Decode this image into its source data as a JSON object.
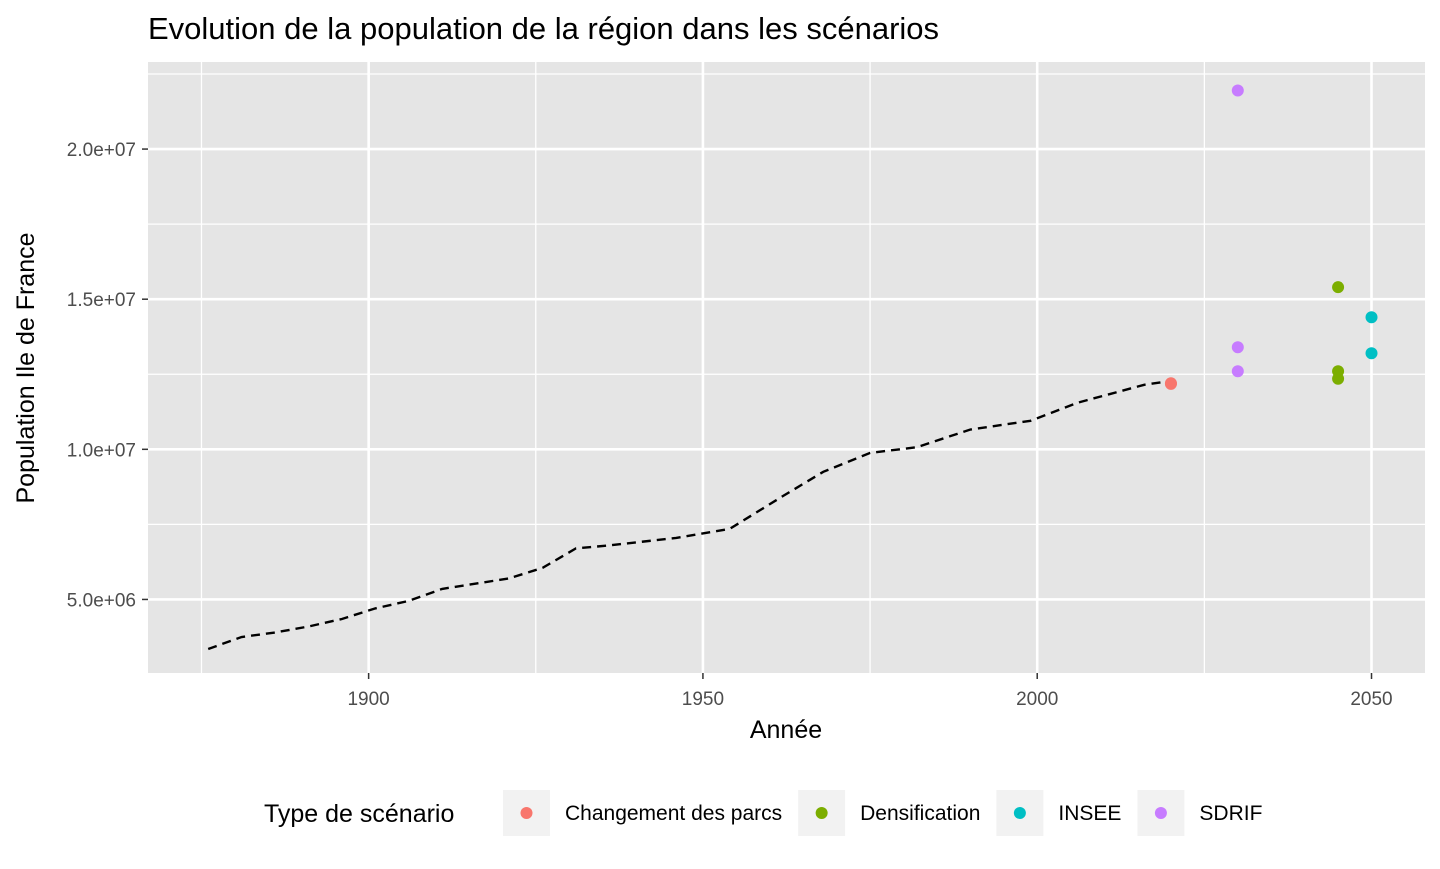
{
  "chart_data": {
    "type": "scatter",
    "title": "Evolution de la population de la région dans les scénarios",
    "xlabel": "Année",
    "ylabel": "Population Ile de France",
    "xlim": [
      1867,
      2058
    ],
    "ylim": [
      2550000,
      22900000
    ],
    "x_ticks": [
      1900,
      1950,
      2000,
      2050
    ],
    "x_tick_labels": [
      "1900",
      "1950",
      "2000",
      "2050"
    ],
    "y_ticks": [
      5000000,
      10000000,
      15000000,
      20000000
    ],
    "y_tick_labels": [
      "5.0e+06",
      "1.0e+07",
      "1.5e+07",
      "2.0e+07"
    ],
    "grid": true,
    "panel_background": "#e5e5e5",
    "grid_color": "#ffffff",
    "legend_position": "bottom",
    "legend_title": "Type de scénario",
    "series": [
      {
        "name": "Changement des parcs",
        "color": "#F8766D",
        "points": [
          [
            2020,
            12200000
          ],
          [
            2020,
            12180000
          ]
        ]
      },
      {
        "name": "Densification",
        "color": "#7CAE00",
        "points": [
          [
            2045,
            15400000
          ],
          [
            2045,
            12600000
          ],
          [
            2045,
            12350000
          ]
        ]
      },
      {
        "name": "INSEE",
        "color": "#00BFC4",
        "points": [
          [
            2050,
            14400000
          ],
          [
            2050,
            13200000
          ]
        ]
      },
      {
        "name": "SDRIF",
        "color": "#C77CFF",
        "points": [
          [
            2030,
            21950000
          ],
          [
            2030,
            13400000
          ],
          [
            2030,
            12600000
          ]
        ]
      }
    ],
    "historical_line": {
      "style": "dashed",
      "color": "#000000",
      "points": [
        [
          1876,
          3350000
        ],
        [
          1881,
          3750000
        ],
        [
          1886,
          3900000
        ],
        [
          1891,
          4100000
        ],
        [
          1896,
          4350000
        ],
        [
          1901,
          4700000
        ],
        [
          1906,
          4950000
        ],
        [
          1911,
          5350000
        ],
        [
          1921,
          5700000
        ],
        [
          1926,
          6050000
        ],
        [
          1931,
          6700000
        ],
        [
          1936,
          6800000
        ],
        [
          1946,
          7050000
        ],
        [
          1954,
          7350000
        ],
        [
          1962,
          8450000
        ],
        [
          1968,
          9250000
        ],
        [
          1975,
          9880000
        ],
        [
          1982,
          10070000
        ],
        [
          1990,
          10660000
        ],
        [
          1999,
          10950000
        ],
        [
          2006,
          11550000
        ],
        [
          2011,
          11850000
        ],
        [
          2016,
          12150000
        ],
        [
          2019,
          12250000
        ]
      ]
    }
  }
}
